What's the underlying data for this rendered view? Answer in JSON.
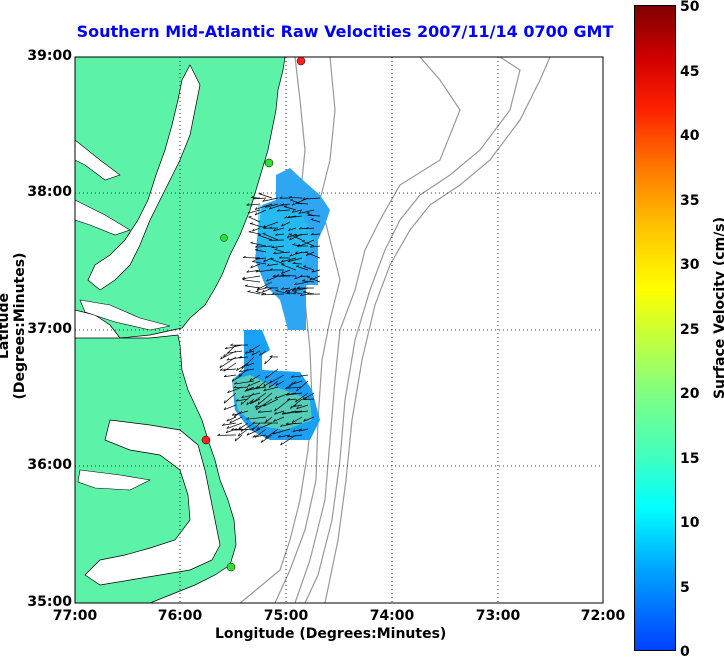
{
  "title": "Southern Mid-Atlantic Raw Velocities 2007/11/14 0700 GMT",
  "xlabel": "Longitude (Degrees:Minutes)",
  "ylabel": "Latitude (Degrees:Minutes)",
  "colorbar": {
    "label": "Surface Velocity (cm/s)",
    "ticks": [
      "0",
      "5",
      "10",
      "15",
      "20",
      "25",
      "30",
      "35",
      "40",
      "45",
      "50"
    ],
    "colors": [
      "#0040ff",
      "#00a0ff",
      "#00ffff",
      "#40ffc0",
      "#80ff80",
      "#c0ff40",
      "#ffff00",
      "#ffc000",
      "#ff8000",
      "#ff2000",
      "#d00000",
      "#800000"
    ]
  },
  "map": {
    "x_ticks": [
      "77:00",
      "76:00",
      "75:00",
      "74:00",
      "73:00",
      "72:00"
    ],
    "y_ticks": [
      "39:00",
      "38:00",
      "37:00",
      "36:00",
      "35:00"
    ],
    "land_color": "#5cf2a8",
    "water_color": "#ffffff",
    "bathymetry_color": "#999999",
    "grid": "dotted",
    "stations": [
      {
        "color": "red",
        "lon": -74.88,
        "lat": 38.95
      },
      {
        "color": "green",
        "lon": -75.12,
        "lat": 38.23
      },
      {
        "color": "green",
        "lon": -75.6,
        "lat": 37.45
      },
      {
        "color": "red",
        "lon": -75.75,
        "lat": 36.18
      },
      {
        "color": "green",
        "lon": -75.48,
        "lat": 35.25
      }
    ]
  }
}
